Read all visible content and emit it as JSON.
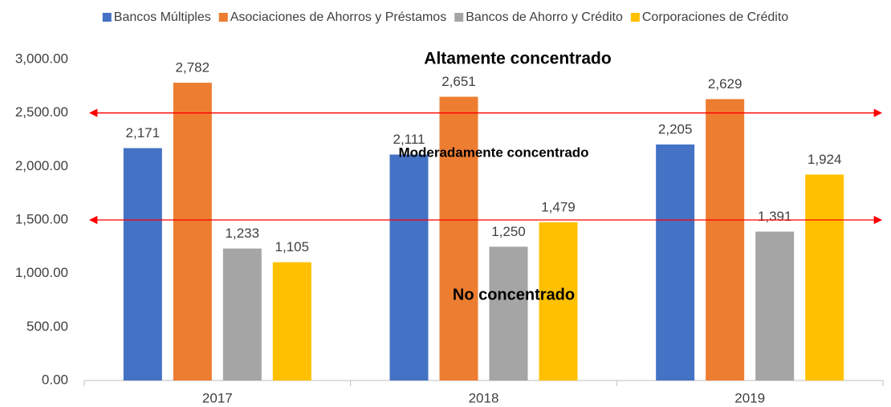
{
  "chart_data": {
    "type": "bar",
    "categories": [
      "2017",
      "2018",
      "2019"
    ],
    "series": [
      {
        "name": "Bancos Múltiples",
        "color": "#4472c4",
        "values": [
          2171,
          2111,
          2205
        ],
        "value_labels": [
          "2,171",
          "2,111",
          "2,205"
        ]
      },
      {
        "name": "Asociaciones de Ahorros y Préstamos",
        "color": "#ed7d31",
        "values": [
          2782,
          2651,
          2629
        ],
        "value_labels": [
          "2,782",
          "2,651",
          "2,629"
        ]
      },
      {
        "name": "Bancos de Ahorro y Crédito",
        "color": "#a5a5a5",
        "values": [
          1233,
          1250,
          1391
        ],
        "value_labels": [
          "1,233",
          "1,250",
          "1,391"
        ]
      },
      {
        "name": "Corporaciones de Crédito",
        "color": "#ffc000",
        "values": [
          1105,
          1479,
          1924
        ],
        "value_labels": [
          "1,105",
          "1,479",
          "1,924"
        ]
      }
    ],
    "ylim": [
      0,
      3000
    ],
    "yticks": [
      {
        "value": 0,
        "label": "0.00"
      },
      {
        "value": 500,
        "label": "500.00"
      },
      {
        "value": 1000,
        "label": "1,000.00"
      },
      {
        "value": 1500,
        "label": "1,500.00"
      },
      {
        "value": 2000,
        "label": "2,000.00"
      },
      {
        "value": 2500,
        "label": "2,500.00"
      },
      {
        "value": 3000,
        "label": "3,000.00"
      }
    ],
    "reference_lines": [
      2500,
      1500
    ],
    "reference_color": "#ff0000",
    "annotations": [
      "Altamente concentrado",
      "Moderadamente concentrado",
      "No concentrado"
    ],
    "legend": "top"
  }
}
